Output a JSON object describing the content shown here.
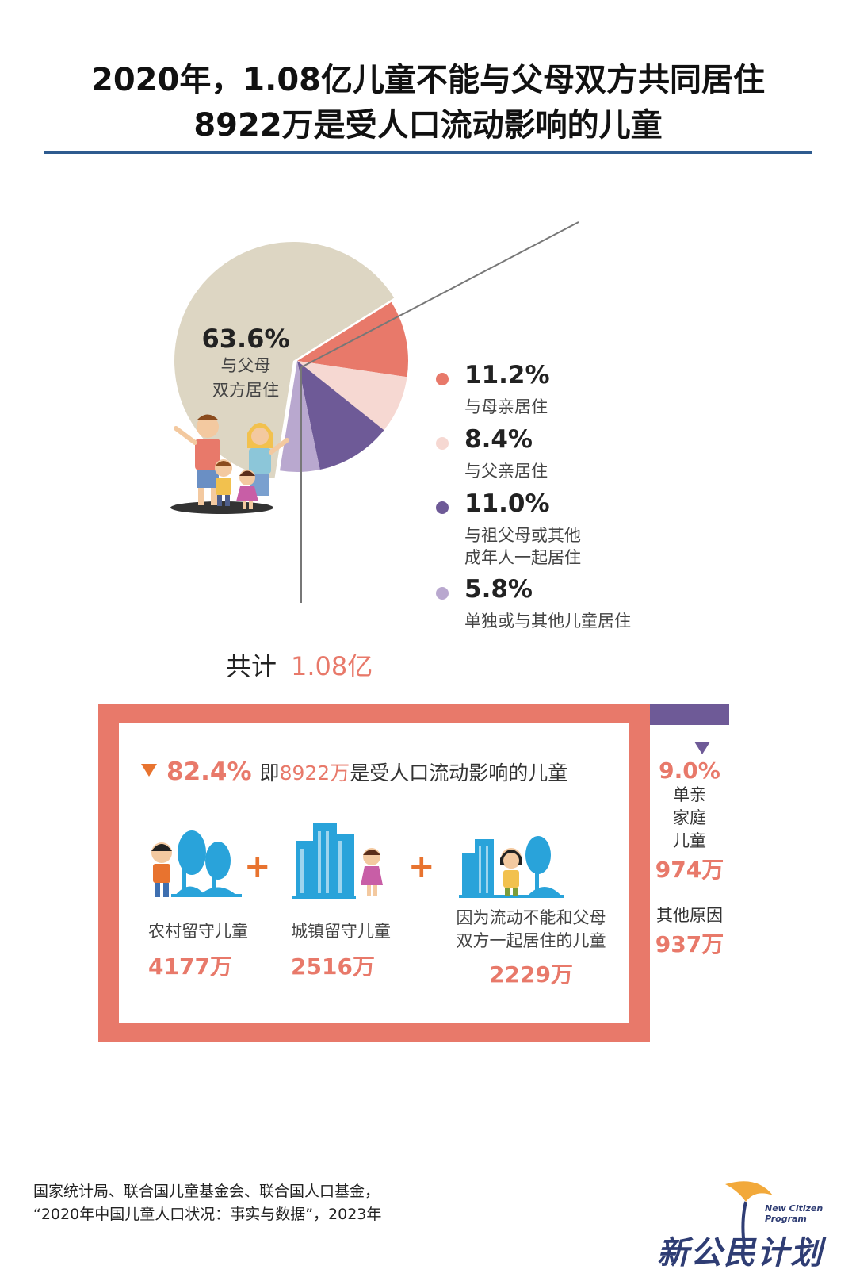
{
  "title": {
    "line1": "2020年，1.08亿儿童不能与父母双方共同居住",
    "line2": "8922万是受人口流动影响的儿童"
  },
  "chart_data": [
    {
      "type": "pie",
      "slices": [
        {
          "name": "与父母双方居住",
          "value": 63.6,
          "label": "63.6%",
          "color": "#ddd6c3"
        },
        {
          "name": "与母亲居住",
          "value": 11.2,
          "label": "11.2%",
          "color": "#e8796a"
        },
        {
          "name": "与父亲居住",
          "value": 8.4,
          "label": "8.4%",
          "color": "#f6d8d2"
        },
        {
          "name": "与祖父母或其他成年人一起居住",
          "value": 11.0,
          "label": "11.0%",
          "color": "#6e5a97"
        },
        {
          "name": "单独或与其他儿童居住",
          "value": 5.8,
          "label": "5.8%",
          "color": "#b9a8cf"
        }
      ],
      "total": {
        "label": "共计",
        "value": "1.08亿"
      }
    },
    {
      "type": "table",
      "headline": {
        "pct": "82.4%",
        "prefix": "即",
        "number": "8922万",
        "text": "是受人口流动影响的儿童"
      },
      "categories": [
        {
          "label": "农村留守儿童",
          "value": "4177万",
          "amount": 4177
        },
        {
          "label": "城镇留守儿童",
          "value": "2516万",
          "amount": 2516
        },
        {
          "label": "因为流动不能和父母双方一起居住的儿童",
          "label_lines": [
            "因为流动不能和父母",
            "双方一起居住的儿童"
          ],
          "value": "2229万",
          "amount": 2229
        }
      ],
      "side": {
        "pct": "9.0%",
        "label_lines": [
          "单亲",
          "家庭",
          "儿童"
        ],
        "value": "974万",
        "other_label": "其他原因",
        "other_value": "937万"
      }
    }
  ],
  "pie_inside_label_lines": [
    "与父母",
    "双方居住"
  ],
  "legend": [
    {
      "pct": "11.2%",
      "lines": [
        "与母亲居住"
      ],
      "color": "#e8796a"
    },
    {
      "pct": "8.4%",
      "lines": [
        "与父亲居住"
      ],
      "color": "#f6d8d2"
    },
    {
      "pct": "11.0%",
      "lines": [
        "与祖父母或其他",
        "成年人一起居住"
      ],
      "color": "#6e5a97"
    },
    {
      "pct": "5.8%",
      "lines": [
        "单独或与其他儿童居住"
      ],
      "color": "#b9a8cf"
    }
  ],
  "source": {
    "line1": "国家统计局、联合国儿童基金会、联合国人口基金，",
    "line2": "“2020年中国儿童人口状况：事实与数据”，2023年"
  },
  "logo": {
    "en_line1": "New Citizen",
    "en_line2": "Program",
    "cn": "新公民计划"
  },
  "colors": {
    "accent": "#e8796a",
    "purple": "#6e5a97",
    "rule": "#2e5b8f",
    "plus": "#e8732f",
    "sky": "#29a3da"
  }
}
